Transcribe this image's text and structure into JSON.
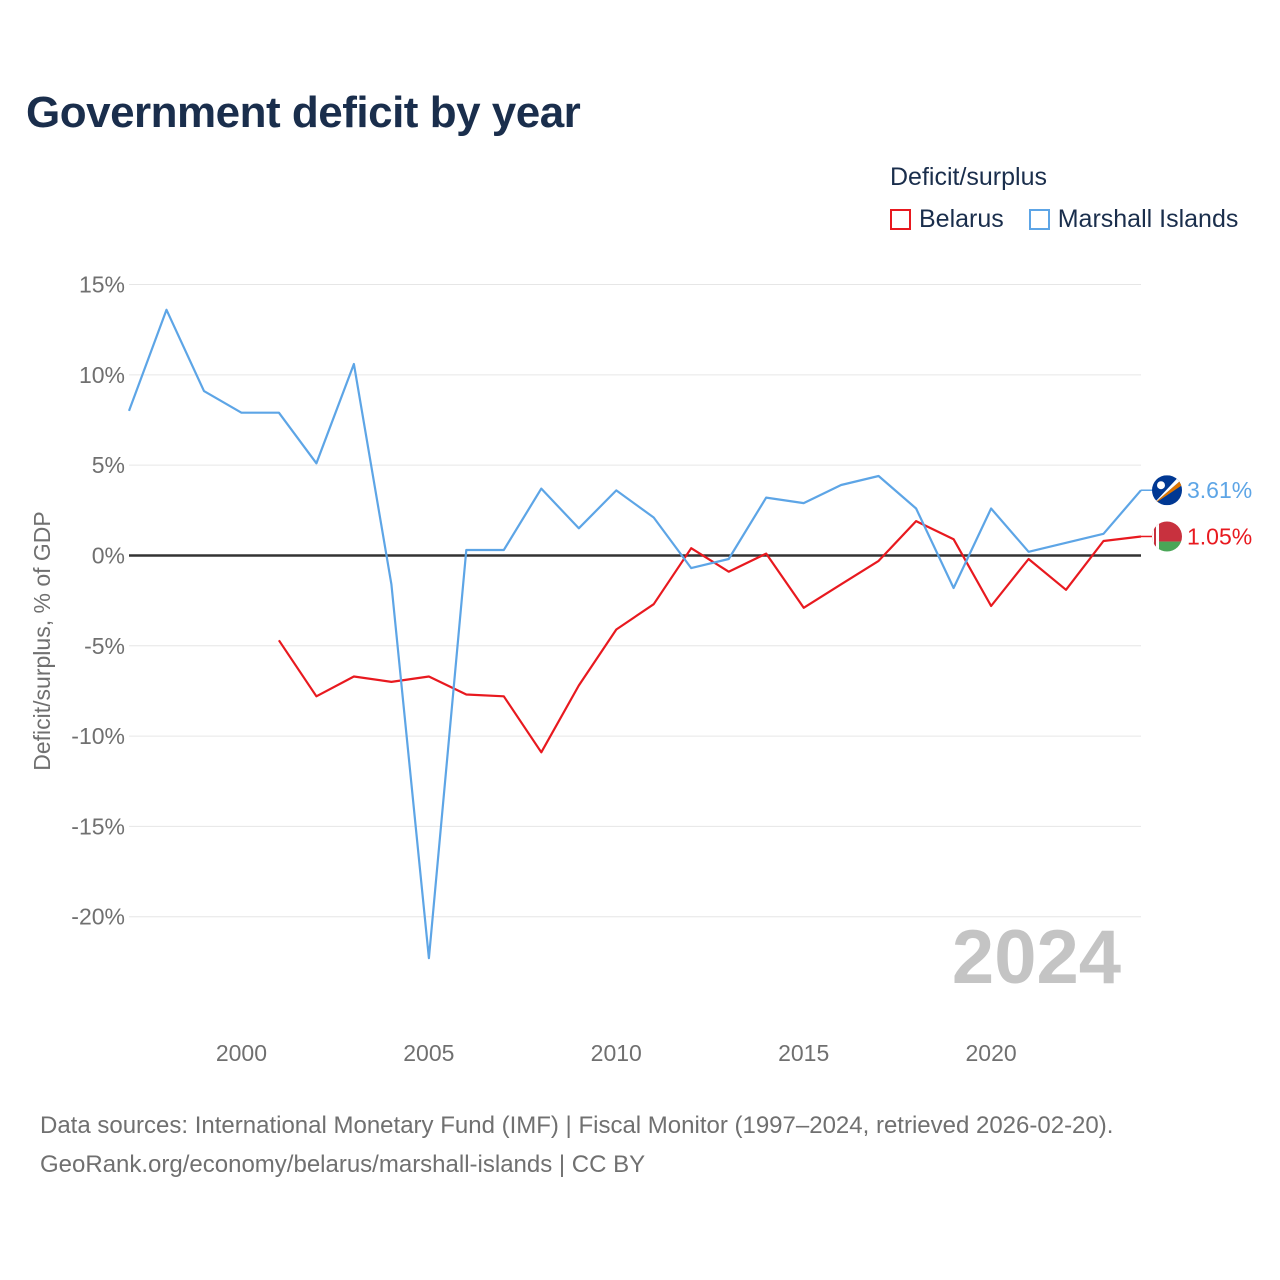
{
  "title": "Government deficit by year",
  "legend": {
    "title": "Deficit/surplus",
    "items": [
      {
        "label": "Belarus",
        "color": "#e8191f"
      },
      {
        "label": "Marshall Islands",
        "color": "#5da5e6"
      }
    ]
  },
  "chart_data": {
    "type": "line",
    "title": "Government deficit by year",
    "xlabel": "",
    "ylabel": "Deficit/surplus, % of GDP",
    "xlim": [
      1997,
      2024
    ],
    "ylim": [
      -25,
      15
    ],
    "x_ticks": [
      2000,
      2005,
      2010,
      2015,
      2020
    ],
    "y_ticks": [
      15,
      10,
      5,
      0,
      -5,
      -10,
      -15,
      -20
    ],
    "y_tick_labels": [
      "15%",
      "10%",
      "5%",
      "0%",
      "-5%",
      "-10%",
      "-15%",
      "-20%"
    ],
    "grid": true,
    "year_watermark": "2024",
    "series": [
      {
        "name": "Belarus",
        "color": "#e8191f",
        "end_label": "1.05%",
        "flag": "belarus-flag-icon",
        "points": [
          [
            2001,
            -4.7
          ],
          [
            2002,
            -7.8
          ],
          [
            2003,
            -6.7
          ],
          [
            2004,
            -7.0
          ],
          [
            2005,
            -6.7
          ],
          [
            2006,
            -7.7
          ],
          [
            2007,
            -7.8
          ],
          [
            2008,
            -10.9
          ],
          [
            2009,
            -7.2
          ],
          [
            2010,
            -4.1
          ],
          [
            2011,
            -2.7
          ],
          [
            2012,
            0.4
          ],
          [
            2013,
            -0.9
          ],
          [
            2014,
            0.1
          ],
          [
            2015,
            -2.9
          ],
          [
            2016,
            -1.6
          ],
          [
            2017,
            -0.3
          ],
          [
            2018,
            1.9
          ],
          [
            2019,
            0.9
          ],
          [
            2020,
            -2.8
          ],
          [
            2021,
            -0.2
          ],
          [
            2022,
            -1.9
          ],
          [
            2023,
            0.8
          ],
          [
            2024,
            1.05
          ]
        ]
      },
      {
        "name": "Marshall Islands",
        "color": "#5da5e6",
        "end_label": "3.61%",
        "flag": "marshall-islands-flag-icon",
        "points": [
          [
            1997,
            8.0
          ],
          [
            1998,
            13.6
          ],
          [
            1999,
            9.1
          ],
          [
            2000,
            7.9
          ],
          [
            2001,
            7.9
          ],
          [
            2002,
            5.1
          ],
          [
            2003,
            10.6
          ],
          [
            2004,
            -1.6
          ],
          [
            2005,
            -22.3
          ],
          [
            2006,
            0.3
          ],
          [
            2007,
            0.3
          ],
          [
            2008,
            3.7
          ],
          [
            2009,
            1.5
          ],
          [
            2010,
            3.6
          ],
          [
            2011,
            2.1
          ],
          [
            2012,
            -0.7
          ],
          [
            2013,
            -0.2
          ],
          [
            2014,
            3.2
          ],
          [
            2015,
            2.9
          ],
          [
            2016,
            3.9
          ],
          [
            2017,
            4.4
          ],
          [
            2018,
            2.6
          ],
          [
            2019,
            -1.8
          ],
          [
            2020,
            2.6
          ],
          [
            2021,
            0.2
          ],
          [
            2022,
            0.7
          ],
          [
            2023,
            1.2
          ],
          [
            2024,
            3.61
          ]
        ]
      }
    ]
  },
  "footer": {
    "line1": "Data sources: International Monetary Fund (IMF) | Fiscal Monitor (1997–2024, retrieved 2026-02-20).",
    "line2": "GeoRank.org/economy/belarus/marshall-islands | CC BY"
  }
}
